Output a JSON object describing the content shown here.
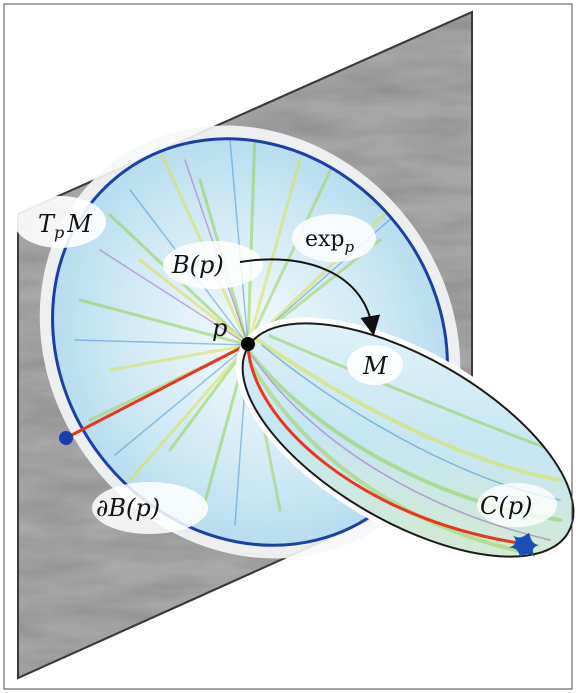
{
  "labels": {
    "tangent_space": "T",
    "tangent_space_sub": "p",
    "tangent_space_tail": "M",
    "ball": "B(p)",
    "exp": "exp",
    "exp_sub": "p",
    "point": "p",
    "manifold": "M",
    "boundary_prefix": "∂",
    "boundary": "B(p)",
    "cut_locus": "C(p)"
  },
  "colors": {
    "frame": "#4a4a4a",
    "plane": "#8c8c8c",
    "disk_fill": "#cfe9f5",
    "disk_stroke": "#1b3fa8",
    "geodesic": "#e8361f",
    "point": "#000000",
    "boundary_point": "#1b3fa8",
    "cut_mark": "#1b4fb8",
    "arrow": "#111111"
  }
}
